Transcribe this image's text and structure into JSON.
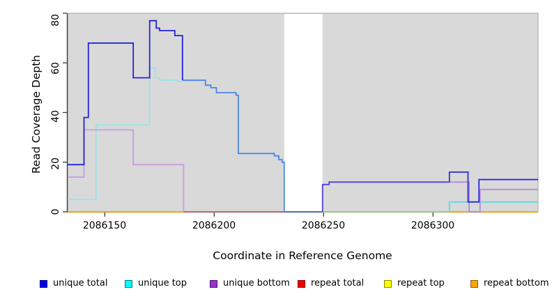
{
  "y_axis": {
    "label": "Read Coverage Depth",
    "ticks": [
      "0",
      "20",
      "40",
      "60",
      "80"
    ]
  },
  "x_axis": {
    "label": "Coordinate in Reference Genome",
    "ticks": [
      "2086150",
      "2086200",
      "2086250",
      "2086300"
    ]
  },
  "legend": [
    {
      "label": "unique total",
      "color": "#0000EE",
      "border": "#000080"
    },
    {
      "label": "unique top",
      "color": "#00FFFF",
      "border": "#007A7A"
    },
    {
      "label": "unique bottom",
      "color": "#9932CC",
      "border": "#4B1070"
    },
    {
      "label": "repeat total",
      "color": "#EE0000",
      "border": "#8B0000"
    },
    {
      "label": "repeat top",
      "color": "#FFFF00",
      "border": "#8A8A00"
    },
    {
      "label": "repeat bottom",
      "color": "#FFA500",
      "border": "#8A5A00"
    }
  ],
  "chart_data": {
    "type": "line",
    "subtype": "step-coverage",
    "title": "",
    "xlabel": "Coordinate in Reference Genome",
    "ylabel": "Read Coverage Depth",
    "xlim": [
      2086133,
      2086348
    ],
    "ylim": [
      0,
      80
    ],
    "x_ticks": [
      2086150,
      2086200,
      2086250,
      2086300
    ],
    "y_ticks": [
      0,
      20,
      40,
      60,
      80
    ],
    "grid": false,
    "legend_position": "bottom",
    "panel_bg": "#D9D9D9",
    "panel_border": "#AFAFAF",
    "axis_color": "#3C3C3C",
    "masked_region": {
      "x0": 2086232,
      "x1": 2086249.5,
      "fill": "#FFFFFF"
    },
    "series": [
      {
        "name": "repeat total (zero)",
        "color": "#EE0000",
        "points": [
          [
            2086133,
            0
          ]
        ],
        "end": 2086348
      },
      {
        "name": "repeat top (zero)",
        "color": "#FFFF00",
        "points": [
          [
            2086133,
            0
          ]
        ],
        "end": 2086348
      },
      {
        "name": "repeat bottom (zero)",
        "color": "#FFA500",
        "points": [
          [
            2086133,
            0
          ]
        ],
        "end": 2086348
      },
      {
        "name": "zero-line overlap purple+orange",
        "color": "#BC5E78",
        "points": [
          [
            2086186,
            0
          ]
        ],
        "end": 2086232
      },
      {
        "name": "zero-line overlap cyan+orange",
        "color": "#8FD48F",
        "points": [
          [
            2086249.5,
            0
          ]
        ],
        "end": 2086307.5
      },
      {
        "name": "unique top (left)",
        "color": "#9BE3E6",
        "points": [
          [
            2086133,
            5
          ],
          [
            2086146,
            35
          ],
          [
            2086170.5,
            58
          ],
          [
            2086173,
            54
          ],
          [
            2086175,
            53
          ],
          [
            2086183,
            52.5
          ]
        ],
        "end": 2086185.5
      },
      {
        "name": "unique top (right)",
        "color": "#55DCE4",
        "points": [
          [
            2086307.5,
            0
          ],
          [
            2086307.5,
            4
          ]
        ],
        "end": 2086348
      },
      {
        "name": "unique bottom (left)",
        "color": "#C79BE0",
        "points": [
          [
            2086133,
            14
          ],
          [
            2086140.5,
            33
          ],
          [
            2086163,
            19
          ],
          [
            2086186,
            0
          ]
        ],
        "end": 2086186
      },
      {
        "name": "unique bottom (right)",
        "color": "#B287E3",
        "points": [
          [
            2086249.5,
            0
          ],
          [
            2086249.5,
            11
          ],
          [
            2086252.5,
            12
          ],
          [
            2086316.5,
            0
          ],
          [
            2086321.5,
            9
          ]
        ],
        "end": 2086348
      },
      {
        "name": "unique total (left, dark blue)",
        "color": "#2323D8",
        "points": [
          [
            2086133,
            19
          ],
          [
            2086140.5,
            38
          ],
          [
            2086142.5,
            68
          ],
          [
            2086163,
            54
          ],
          [
            2086170.5,
            77
          ],
          [
            2086173.5,
            74
          ],
          [
            2086175,
            73
          ],
          [
            2086182,
            71
          ],
          [
            2086185.5,
            53
          ]
        ],
        "end": 2086185.5
      },
      {
        "name": "unique total (descent, light blue)",
        "color": "#4A86E8",
        "points": [
          [
            2086185.5,
            53
          ],
          [
            2086196,
            51
          ],
          [
            2086198.5,
            50
          ],
          [
            2086201,
            48
          ],
          [
            2086210,
            47
          ],
          [
            2086211,
            23.5
          ],
          [
            2086227.5,
            22.5
          ],
          [
            2086229.5,
            21
          ],
          [
            2086231,
            20
          ],
          [
            2086232,
            0
          ]
        ],
        "end": 2086232
      },
      {
        "name": "unique total (masked gap, zero)",
        "color": "#4169E1",
        "points": [
          [
            2086232,
            0
          ]
        ],
        "end": 2086249.5
      },
      {
        "name": "unique total (violet, equals bottom)",
        "color": "#5148DD",
        "points": [
          [
            2086249.5,
            0
          ],
          [
            2086249.5,
            11
          ],
          [
            2086252.5,
            12
          ]
        ],
        "end": 2086307.5
      },
      {
        "name": "unique total (right)",
        "color": "#2B2BDF",
        "points": [
          [
            2086307.5,
            12
          ],
          [
            2086307.5,
            16
          ],
          [
            2086316,
            4
          ],
          [
            2086321,
            13
          ]
        ],
        "end": 2086348
      }
    ]
  }
}
